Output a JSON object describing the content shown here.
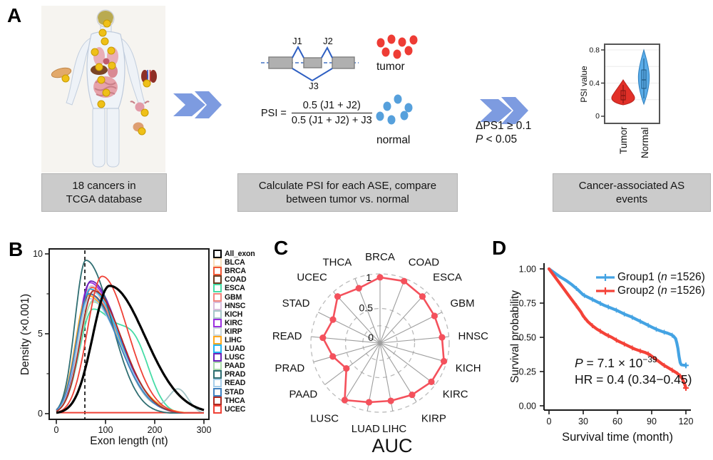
{
  "figure": {
    "panel_labels": {
      "a": "A",
      "b": "B",
      "c": "C",
      "d": "D"
    }
  },
  "panels": {
    "a": {
      "caption_box1": "18 cancers in\nTCGA database",
      "caption_box2": "Calculate PSI for each ASE, compare\nbetween tumor vs. normal",
      "caption_box3": "Cancer-associated AS\nevents",
      "splice": {
        "j1": "J1",
        "j2": "J2",
        "j3": "J3"
      },
      "formula": {
        "lhs": "PSI =",
        "numerator": "0.5 (J1 + J2)",
        "denominator": "0.5 (J1 + J2) + J3"
      },
      "tumor_label": "tumor",
      "normal_label": "normal",
      "filter_line1": "ΔPS1 ≥ 0.1",
      "filter_p": "P",
      "filter_line2_rest": " < 0.05",
      "violin": {
        "ylabel": "PSI value",
        "yticks": [
          "0",
          "0.4",
          "0.8"
        ],
        "categories": [
          "Tumor",
          "Normal"
        ],
        "tumor_color": "#E23028",
        "normal_color": "#5AACE8"
      }
    }
  },
  "chart_data": [
    {
      "panel": "B",
      "type": "line",
      "title": "",
      "xlabel": "Exon length (nt)",
      "ylabel": "Density (×0.001)",
      "xlim": [
        0,
        300
      ],
      "ylim": [
        0,
        10
      ],
      "xticks": [
        0,
        100,
        200,
        300
      ],
      "yticks": [
        0,
        5,
        10
      ],
      "yticks_minor": [
        2.5,
        7.5
      ],
      "dashed_vline_x": 58,
      "baseline_color": "#EF4136",
      "series": [
        {
          "name": "All_exon",
          "color": "#000000",
          "peak_x": 108,
          "peak_y": 8.0,
          "sigma_left": 34,
          "sigma_right": 72,
          "line_width": 3.2
        },
        {
          "name": "BLCA",
          "color": "#F8E0BC",
          "peak_x": 70,
          "peak_y": 7.4,
          "sigma_left": 25,
          "sigma_right": 60
        },
        {
          "name": "BRCA",
          "color": "#F15A38",
          "peak_x": 72,
          "peak_y": 7.9,
          "sigma_left": 26,
          "sigma_right": 58
        },
        {
          "name": "COAD",
          "color": "#6D3B1F",
          "peak_x": 67,
          "peak_y": 7.5,
          "sigma_left": 25,
          "sigma_right": 62
        },
        {
          "name": "ESCA",
          "color": "#46DCA6",
          "peak_x": 74,
          "peak_y": 6.5,
          "sigma_left": 27,
          "sigma_right": 55,
          "bump": {
            "x": 162,
            "y": 3.0,
            "sigma": 30
          }
        },
        {
          "name": "GBM",
          "color": "#F28680",
          "peak_x": 66,
          "peak_y": 7.8,
          "sigma_left": 25,
          "sigma_right": 60
        },
        {
          "name": "HNSC",
          "color": "#D9BEDC",
          "peak_x": 71,
          "peak_y": 8.0,
          "sigma_left": 26,
          "sigma_right": 58
        },
        {
          "name": "KICH",
          "color": "#A5C6C8",
          "peak_x": 75,
          "peak_y": 7.1,
          "sigma_left": 27,
          "sigma_right": 55,
          "bump": {
            "x": 248,
            "y": 1.5,
            "sigma": 20
          }
        },
        {
          "name": "KIRC",
          "color": "#9B30E0",
          "peak_x": 68,
          "peak_y": 8.2,
          "sigma_left": 25,
          "sigma_right": 60
        },
        {
          "name": "KIRP",
          "color": "#CBD8DD",
          "peak_x": 72,
          "peak_y": 7.6,
          "sigma_left": 26,
          "sigma_right": 60
        },
        {
          "name": "LIHC",
          "color": "#FFA81F",
          "peak_x": 63,
          "peak_y": 7.4,
          "sigma_left": 24,
          "sigma_right": 65
        },
        {
          "name": "LUAD",
          "color": "#27B4EF",
          "peak_x": 69,
          "peak_y": 7.8,
          "sigma_left": 25,
          "sigma_right": 60
        },
        {
          "name": "LUSC",
          "color": "#6D23BA",
          "peak_x": 70,
          "peak_y": 8.3,
          "sigma_left": 25,
          "sigma_right": 58
        },
        {
          "name": "PAAD",
          "color": "#AADAAB",
          "peak_x": 74,
          "peak_y": 7.0,
          "sigma_left": 27,
          "sigma_right": 58
        },
        {
          "name": "PRAD",
          "color": "#2F6E72",
          "peak_x": 60,
          "peak_y": 9.6,
          "sigma_left": 22,
          "sigma_right": 52
        },
        {
          "name": "READ",
          "color": "#A5CDE9",
          "peak_x": 67,
          "peak_y": 7.2,
          "sigma_left": 25,
          "sigma_right": 62
        },
        {
          "name": "STAD",
          "color": "#3F80BF",
          "peak_x": 66,
          "peak_y": 7.5,
          "sigma_left": 25,
          "sigma_right": 60
        },
        {
          "name": "THCA",
          "color": "#AF2A21",
          "peak_x": 76,
          "peak_y": 7.7,
          "sigma_left": 27,
          "sigma_right": 57
        },
        {
          "name": "UCEC",
          "color": "#EF4136",
          "peak_x": 93,
          "peak_y": 8.6,
          "sigma_left": 30,
          "sigma_right": 52
        }
      ]
    },
    {
      "panel": "C",
      "type": "radar",
      "title": "AUC",
      "categories": [
        "BRCA",
        "COAD",
        "ESCA",
        "GBM",
        "HNSC",
        "KICH",
        "KIRC",
        "KIRP",
        "LIHC",
        "LUAD",
        "LUSC",
        "PAAD",
        "PRAD",
        "READ",
        "STAD",
        "UCEC",
        "THCA"
      ],
      "values": [
        0.95,
        0.96,
        0.91,
        0.88,
        0.9,
        0.96,
        0.93,
        0.88,
        0.85,
        0.87,
        0.97,
        0.61,
        0.71,
        0.83,
        0.76,
        0.91,
        0.85
      ],
      "rlim": [
        0,
        1
      ],
      "rticks": [
        0,
        0.5,
        1
      ],
      "rtick_labels": [
        "0",
        "0.5",
        "1"
      ],
      "line_color": "#F4515C",
      "grid": "dashed circles, solid spokes"
    },
    {
      "panel": "D",
      "type": "line",
      "xlabel": "Survival time (month)",
      "ylabel": "Survival probability",
      "xticks": [
        0,
        30,
        60,
        90,
        120
      ],
      "yticks": [
        0,
        0.25,
        0.5,
        0.75,
        1
      ],
      "ytick_labels": [
        "0.00",
        "0.25",
        "0.50",
        "0.75",
        "1.00"
      ],
      "series": [
        {
          "legend_pre": "Group1 (",
          "legend_n": "n",
          "legend_post": " =1526)",
          "color": "#44A3E3",
          "points": [
            [
              0,
              1.0
            ],
            [
              5,
              0.97
            ],
            [
              10,
              0.94
            ],
            [
              15,
              0.915
            ],
            [
              20,
              0.885
            ],
            [
              25,
              0.85
            ],
            [
              30,
              0.81
            ],
            [
              36,
              0.785
            ],
            [
              42,
              0.76
            ],
            [
              48,
              0.735
            ],
            [
              54,
              0.715
            ],
            [
              60,
              0.695
            ],
            [
              66,
              0.67
            ],
            [
              72,
              0.65
            ],
            [
              78,
              0.625
            ],
            [
              84,
              0.6
            ],
            [
              90,
              0.575
            ],
            [
              95,
              0.555
            ],
            [
              100,
              0.54
            ],
            [
              104,
              0.53
            ],
            [
              107,
              0.52
            ],
            [
              109,
              0.51
            ],
            [
              111,
              0.49
            ],
            [
              112,
              0.46
            ],
            [
              113,
              0.42
            ],
            [
              114,
              0.36
            ],
            [
              115,
              0.315
            ],
            [
              116,
              0.3
            ],
            [
              120,
              0.295
            ]
          ]
        },
        {
          "legend_pre": "Group2 (",
          "legend_n": "n",
          "legend_post": " =1526)",
          "color": "#F44238",
          "points": [
            [
              0,
              1.0
            ],
            [
              4,
              0.955
            ],
            [
              8,
              0.91
            ],
            [
              12,
              0.865
            ],
            [
              16,
              0.82
            ],
            [
              20,
              0.775
            ],
            [
              24,
              0.73
            ],
            [
              28,
              0.685
            ],
            [
              30,
              0.655
            ],
            [
              34,
              0.615
            ],
            [
              38,
              0.585
            ],
            [
              42,
              0.56
            ],
            [
              46,
              0.54
            ],
            [
              50,
              0.52
            ],
            [
              55,
              0.5
            ],
            [
              60,
              0.475
            ],
            [
              65,
              0.455
            ],
            [
              70,
              0.435
            ],
            [
              75,
              0.415
            ],
            [
              80,
              0.4
            ],
            [
              84,
              0.39
            ],
            [
              88,
              0.375
            ],
            [
              92,
              0.35
            ],
            [
              96,
              0.325
            ],
            [
              100,
              0.3
            ],
            [
              104,
              0.28
            ],
            [
              108,
              0.26
            ],
            [
              112,
              0.24
            ],
            [
              114,
              0.225
            ],
            [
              116,
              0.21
            ],
            [
              117,
              0.195
            ],
            [
              118,
              0.175
            ],
            [
              119,
              0.155
            ],
            [
              120,
              0.13
            ]
          ]
        }
      ],
      "annotations": {
        "p_italic": "P",
        "p_text": " = 7.1 × 10",
        "p_sup": "−39",
        "hr_text": "HR = 0.4 (0.34−0.45)"
      }
    }
  ]
}
